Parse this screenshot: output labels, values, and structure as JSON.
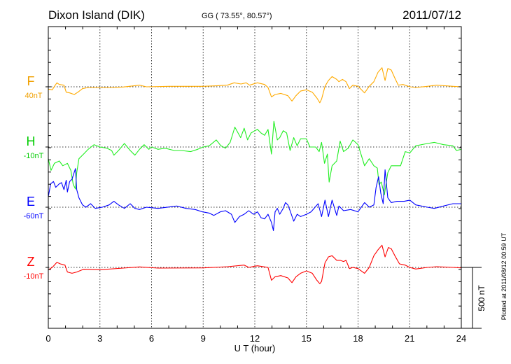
{
  "chart_data": {
    "type": "line",
    "title": "Dixon Island (DIK)",
    "subtitle": "GG ( 73.55°,  80.57°)",
    "date": "2011/07/12",
    "xlabel": "U T (hour)",
    "xlim": [
      0,
      24
    ],
    "xticks": [
      "0",
      "3",
      "6",
      "9",
      "12",
      "15",
      "18",
      "21",
      "24"
    ],
    "scale_bar_label": "500 nT",
    "scale_bar_nT": 500,
    "plotted_note": "Plotted at 2011/08/12 00:59 UT",
    "grid": true,
    "series": [
      {
        "name": "F",
        "baseline_label": "40nT",
        "color": "#ffaa00",
        "label_color": "#f0a000",
        "points": [
          [
            0,
            -19
          ],
          [
            0.23,
            -25
          ],
          [
            0.36,
            4
          ],
          [
            0.5,
            33
          ],
          [
            0.64,
            19
          ],
          [
            0.91,
            13
          ],
          [
            1.04,
            -44
          ],
          [
            1.24,
            -50
          ],
          [
            1.51,
            -63
          ],
          [
            1.72,
            -44
          ],
          [
            1.99,
            -15
          ],
          [
            2.32,
            -6
          ],
          [
            3,
            -6
          ],
          [
            3.7,
            -6
          ],
          [
            4.35,
            -2
          ],
          [
            5.3,
            13
          ],
          [
            5.7,
            0
          ],
          [
            7.05,
            4
          ],
          [
            9,
            4
          ],
          [
            9.76,
            8
          ],
          [
            10.4,
            13
          ],
          [
            10.8,
            33
          ],
          [
            11.2,
            23
          ],
          [
            11.5,
            33
          ],
          [
            11.7,
            13
          ],
          [
            12,
            27
          ],
          [
            12.16,
            33
          ],
          [
            12.57,
            19
          ],
          [
            12.77,
            -6
          ],
          [
            12.97,
            -83
          ],
          [
            13.18,
            -63
          ],
          [
            13.51,
            -54
          ],
          [
            13.92,
            -73
          ],
          [
            14.16,
            -117
          ],
          [
            14.39,
            -73
          ],
          [
            14.66,
            -35
          ],
          [
            15,
            -25
          ],
          [
            15.34,
            -44
          ],
          [
            15.61,
            -92
          ],
          [
            15.78,
            -131
          ],
          [
            15.88,
            -101
          ],
          [
            16.08,
            4
          ],
          [
            16.28,
            52
          ],
          [
            16.49,
            84
          ],
          [
            16.76,
            61
          ],
          [
            16.89,
            42
          ],
          [
            17.09,
            61
          ],
          [
            17.3,
            42
          ],
          [
            17.5,
            -15
          ],
          [
            17.7,
            13
          ],
          [
            18,
            4
          ],
          [
            18.38,
            -50
          ],
          [
            18.65,
            4
          ],
          [
            18.92,
            42
          ],
          [
            19.16,
            119
          ],
          [
            19.39,
            157
          ],
          [
            19.57,
            52
          ],
          [
            19.73,
            150
          ],
          [
            19.93,
            138
          ],
          [
            20.14,
            71
          ],
          [
            20.34,
            13
          ],
          [
            20.61,
            19
          ],
          [
            21.01,
            0
          ],
          [
            21.35,
            -6
          ],
          [
            22.03,
            4
          ],
          [
            22.57,
            13
          ],
          [
            23.51,
            4
          ],
          [
            24,
            0
          ]
        ]
      },
      {
        "name": "H",
        "baseline_label": "-10nT",
        "color": "#22ee22",
        "label_color": "#00cc00",
        "points": [
          [
            0,
            -96
          ],
          [
            0.16,
            -192
          ],
          [
            0.36,
            -134
          ],
          [
            0.64,
            -115
          ],
          [
            0.84,
            -154
          ],
          [
            1.11,
            -134
          ],
          [
            1.31,
            -192
          ],
          [
            1.45,
            -307
          ],
          [
            1.58,
            -345
          ],
          [
            1.65,
            -211
          ],
          [
            1.78,
            -96
          ],
          [
            2.05,
            -58
          ],
          [
            2.32,
            -19
          ],
          [
            2.66,
            19
          ],
          [
            3,
            0
          ],
          [
            3.41,
            -10
          ],
          [
            3.68,
            -29
          ],
          [
            3.81,
            -67
          ],
          [
            4.08,
            -29
          ],
          [
            4.42,
            29
          ],
          [
            4.76,
            -29
          ],
          [
            5.03,
            -67
          ],
          [
            5.3,
            -19
          ],
          [
            5.57,
            19
          ],
          [
            5.84,
            -19
          ],
          [
            6,
            0
          ],
          [
            6.38,
            -19
          ],
          [
            6.78,
            -10
          ],
          [
            7.32,
            -29
          ],
          [
            7.73,
            -29
          ],
          [
            8.27,
            -38
          ],
          [
            8.68,
            -19
          ],
          [
            9,
            0
          ],
          [
            9.35,
            10
          ],
          [
            9.76,
            58
          ],
          [
            10.03,
            10
          ],
          [
            10.3,
            -10
          ],
          [
            10.57,
            38
          ],
          [
            10.84,
            163
          ],
          [
            11.18,
            77
          ],
          [
            11.38,
            154
          ],
          [
            11.58,
            58
          ],
          [
            11.78,
            115
          ],
          [
            12,
            134
          ],
          [
            12.16,
            144
          ],
          [
            12.36,
            115
          ],
          [
            12.57,
            96
          ],
          [
            12.77,
            144
          ],
          [
            12.97,
            -58
          ],
          [
            13.11,
            211
          ],
          [
            13.31,
            58
          ],
          [
            13.45,
            77
          ],
          [
            13.65,
            134
          ],
          [
            13.85,
            115
          ],
          [
            14.05,
            -29
          ],
          [
            14.26,
            77
          ],
          [
            14.46,
            10
          ],
          [
            14.66,
            67
          ],
          [
            15,
            67
          ],
          [
            15.2,
            0
          ],
          [
            15.54,
            0
          ],
          [
            15.74,
            -38
          ],
          [
            15.88,
            38
          ],
          [
            16.05,
            -134
          ],
          [
            16.22,
            -58
          ],
          [
            16.32,
            -288
          ],
          [
            16.49,
            -154
          ],
          [
            16.76,
            -115
          ],
          [
            16.96,
            48
          ],
          [
            17.16,
            -38
          ],
          [
            17.43,
            -10
          ],
          [
            17.7,
            58
          ],
          [
            18,
            19
          ],
          [
            18.38,
            -154
          ],
          [
            18.65,
            -96
          ],
          [
            18.92,
            -154
          ],
          [
            19.12,
            -173
          ],
          [
            19.22,
            -307
          ],
          [
            19.35,
            -288
          ],
          [
            19.53,
            -393
          ],
          [
            19.73,
            -211
          ],
          [
            19.93,
            -154
          ],
          [
            20.2,
            -154
          ],
          [
            20.47,
            -154
          ],
          [
            20.74,
            -38
          ],
          [
            21.01,
            -48
          ],
          [
            21.35,
            10
          ],
          [
            22.03,
            29
          ],
          [
            22.43,
            38
          ],
          [
            22.97,
            19
          ],
          [
            23.51,
            10
          ],
          [
            23.72,
            -29
          ],
          [
            24,
            -19
          ]
        ]
      },
      {
        "name": "E",
        "baseline_label": "-60nT",
        "color": "#0000ff",
        "label_color": "#0000ff",
        "points": [
          [
            0,
            86
          ],
          [
            0.14,
            192
          ],
          [
            0.3,
            211
          ],
          [
            0.43,
            163
          ],
          [
            0.64,
            192
          ],
          [
            0.77,
            202
          ],
          [
            0.91,
            144
          ],
          [
            1.04,
            221
          ],
          [
            1.11,
            125
          ],
          [
            1.24,
            211
          ],
          [
            1.38,
            230
          ],
          [
            1.51,
            288
          ],
          [
            1.58,
            317
          ],
          [
            1.65,
            144
          ],
          [
            1.78,
            77
          ],
          [
            1.99,
            19
          ],
          [
            2.19,
            0
          ],
          [
            2.46,
            29
          ],
          [
            2.73,
            -10
          ],
          [
            3.14,
            0
          ],
          [
            3.54,
            19
          ],
          [
            3.81,
            48
          ],
          [
            4.08,
            19
          ],
          [
            4.42,
            -10
          ],
          [
            4.76,
            29
          ],
          [
            5.03,
            -10
          ],
          [
            5.3,
            -19
          ],
          [
            5.7,
            0
          ],
          [
            6.38,
            -10
          ],
          [
            7.46,
            10
          ],
          [
            8,
            -10
          ],
          [
            8.54,
            -19
          ],
          [
            8.95,
            -38
          ],
          [
            9.35,
            -48
          ],
          [
            9.62,
            -67
          ],
          [
            10,
            -38
          ],
          [
            10.3,
            -29
          ],
          [
            10.64,
            -58
          ],
          [
            10.84,
            -125
          ],
          [
            11.11,
            -77
          ],
          [
            11.38,
            -58
          ],
          [
            11.65,
            -29
          ],
          [
            11.92,
            -58
          ],
          [
            12.16,
            -38
          ],
          [
            12.36,
            -86
          ],
          [
            12.57,
            -96
          ],
          [
            12.77,
            -58
          ],
          [
            12.97,
            -125
          ],
          [
            13.08,
            -192
          ],
          [
            13.18,
            -38
          ],
          [
            13.31,
            -10
          ],
          [
            13.45,
            -58
          ],
          [
            13.65,
            -10
          ],
          [
            13.78,
            38
          ],
          [
            13.92,
            19
          ],
          [
            14.05,
            -29
          ],
          [
            14.26,
            -115
          ],
          [
            14.46,
            -58
          ],
          [
            14.66,
            -77
          ],
          [
            15,
            -58
          ],
          [
            15.27,
            -38
          ],
          [
            15.68,
            29
          ],
          [
            15.88,
            -77
          ],
          [
            16.08,
            58
          ],
          [
            16.28,
            -77
          ],
          [
            16.49,
            58
          ],
          [
            16.76,
            -67
          ],
          [
            16.89,
            10
          ],
          [
            17.16,
            -29
          ],
          [
            17.57,
            -19
          ],
          [
            18,
            -38
          ],
          [
            18.38,
            38
          ],
          [
            18.65,
            0
          ],
          [
            18.92,
            19
          ],
          [
            19.05,
            163
          ],
          [
            19.19,
            250
          ],
          [
            19.32,
            115
          ],
          [
            19.46,
            29
          ],
          [
            19.57,
            307
          ],
          [
            19.73,
            77
          ],
          [
            19.93,
            38
          ],
          [
            20.27,
            48
          ],
          [
            20.68,
            48
          ],
          [
            21.01,
            58
          ],
          [
            21.35,
            19
          ],
          [
            22.03,
            0
          ],
          [
            22.43,
            -10
          ],
          [
            22.97,
            10
          ],
          [
            23.51,
            29
          ],
          [
            24,
            29
          ]
        ]
      },
      {
        "name": "Z",
        "baseline_label": "-10nT",
        "color": "#ff0000",
        "label_color": "#ff0000",
        "points": [
          [
            0,
            -19
          ],
          [
            0.23,
            0
          ],
          [
            0.5,
            42
          ],
          [
            0.7,
            29
          ],
          [
            0.97,
            19
          ],
          [
            1.11,
            -38
          ],
          [
            1.38,
            -48
          ],
          [
            1.65,
            -38
          ],
          [
            2.05,
            -15
          ],
          [
            3,
            -19
          ],
          [
            4.35,
            -6
          ],
          [
            5.3,
            4
          ],
          [
            6.38,
            -6
          ],
          [
            9,
            -4
          ],
          [
            10.43,
            6
          ],
          [
            11.38,
            19
          ],
          [
            11.65,
            0
          ],
          [
            12,
            10
          ],
          [
            12.16,
            13
          ],
          [
            12.57,
            4
          ],
          [
            12.77,
            0
          ],
          [
            12.97,
            -106
          ],
          [
            13.18,
            -77
          ],
          [
            13.51,
            -67
          ],
          [
            13.92,
            -86
          ],
          [
            14.16,
            -125
          ],
          [
            14.39,
            -77
          ],
          [
            14.66,
            -48
          ],
          [
            15,
            -29
          ],
          [
            15.34,
            -48
          ],
          [
            15.61,
            -106
          ],
          [
            15.78,
            -134
          ],
          [
            15.88,
            -115
          ],
          [
            16.08,
            38
          ],
          [
            16.28,
            86
          ],
          [
            16.49,
            96
          ],
          [
            16.76,
            58
          ],
          [
            16.96,
            58
          ],
          [
            17.16,
            48
          ],
          [
            17.3,
            58
          ],
          [
            17.5,
            -10
          ],
          [
            17.7,
            0
          ],
          [
            18,
            -10
          ],
          [
            18.38,
            -48
          ],
          [
            18.65,
            0
          ],
          [
            18.92,
            96
          ],
          [
            19.16,
            144
          ],
          [
            19.39,
            182
          ],
          [
            19.57,
            86
          ],
          [
            19.76,
            163
          ],
          [
            19.93,
            154
          ],
          [
            20.14,
            96
          ],
          [
            20.41,
            29
          ],
          [
            20.74,
            19
          ],
          [
            21,
            0
          ],
          [
            21.35,
            -13
          ],
          [
            22.03,
            0
          ],
          [
            22.57,
            6
          ],
          [
            23.51,
            0
          ],
          [
            24,
            -4
          ]
        ]
      }
    ]
  }
}
